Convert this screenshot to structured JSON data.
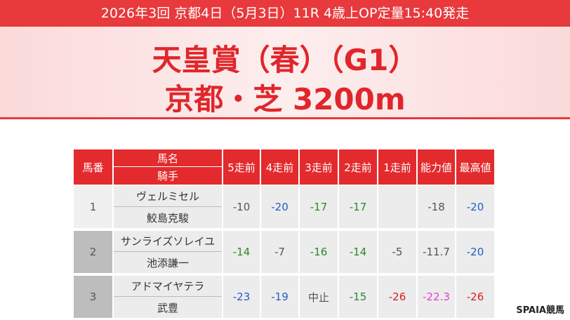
{
  "header": {
    "info": "2026年3回 京都4日（5月3日）11R 4歳上OP定量15:40発走",
    "title": "天皇賞（春）（G1）",
    "course": "京都・芝 3200m"
  },
  "table": {
    "columns": {
      "number": "馬番",
      "horse": "馬名",
      "jockey": "騎手",
      "results": [
        "5走前",
        "4走前",
        "3走前",
        "2走前",
        "1走前",
        "能力値",
        "最高値"
      ]
    },
    "rows": [
      {
        "number": 1,
        "horse": "ヴェルミセル",
        "jockey": "鮫島克駿",
        "results": [
          "-10",
          "-20",
          "-17",
          "-17",
          null,
          "-18",
          "-20"
        ],
        "colors": [
          "#555555",
          "#1f5fc4",
          "#2a8a2a",
          "#2a8a2a",
          null,
          "#555555",
          "#1f5fc4"
        ]
      },
      {
        "number": 2,
        "horse": "サンライズソレイユ",
        "jockey": "池添謙一",
        "results": [
          "-14",
          "-7",
          "-16",
          "-14",
          "-5",
          "-11.7",
          "-20"
        ],
        "colors": [
          "#2a8a2a",
          "#555555",
          "#2a8a2a",
          "#2a8a2a",
          "#555555",
          "#555555",
          "#1f5fc4"
        ]
      },
      {
        "number": 3,
        "horse": "アドマイヤテラ",
        "jockey": "武豊",
        "results": [
          "-23",
          "-19",
          "中止",
          "-15",
          "-26",
          "-22.3",
          "-26"
        ],
        "colors": [
          "#1f5fc4",
          "#1f5fc4",
          "#555555",
          "#2a8a2a",
          "#d42020",
          "#e040d0",
          "#d42020"
        ]
      }
    ]
  },
  "logo": "SPAIA競馬"
}
